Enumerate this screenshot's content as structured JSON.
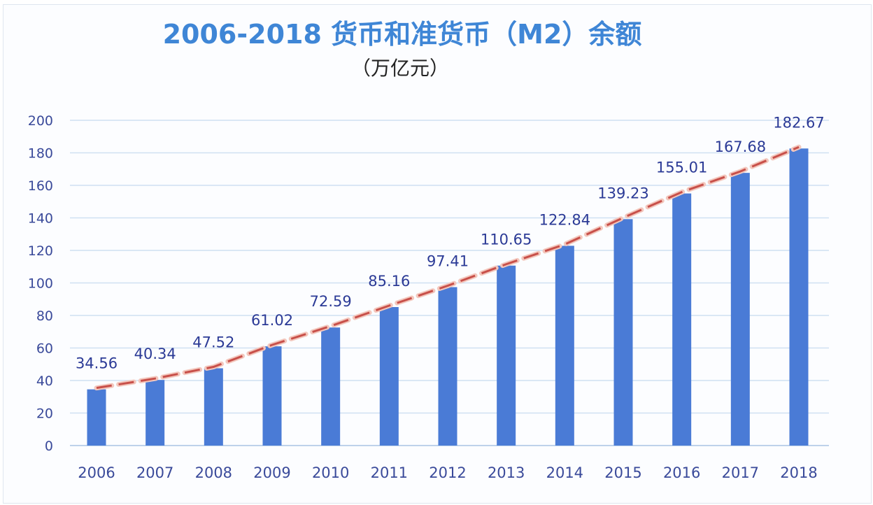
{
  "chart_data": {
    "type": "bar",
    "title": "2006-2018 货币和准货币（M2）余额",
    "subtitle": "（万亿元）",
    "categories": [
      "2006",
      "2007",
      "2008",
      "2009",
      "2010",
      "2011",
      "2012",
      "2013",
      "2014",
      "2015",
      "2016",
      "2017",
      "2018"
    ],
    "values": [
      34.56,
      40.34,
      47.52,
      61.02,
      72.59,
      85.16,
      97.41,
      110.65,
      122.84,
      139.23,
      155.01,
      167.68,
      182.67
    ],
    "data_labels": [
      "34.56",
      "40.34",
      "47.52",
      "61.02",
      "72.59",
      "85.16",
      "97.41",
      "110.65",
      "122.84",
      "139.23",
      "155.01",
      "167.68",
      "182.67"
    ],
    "yticks": [
      "0",
      "20",
      "40",
      "60",
      "80",
      "100",
      "120",
      "140",
      "160",
      "180",
      "200"
    ],
    "ylim": [
      0,
      200
    ],
    "grid": true,
    "trendline": "dashed",
    "colors": {
      "bar": "#4a7bd6",
      "trendline": "#c8504a",
      "title": "#3f86d6",
      "grid": "#cfe0f2",
      "labels": "#2b3a96"
    }
  }
}
